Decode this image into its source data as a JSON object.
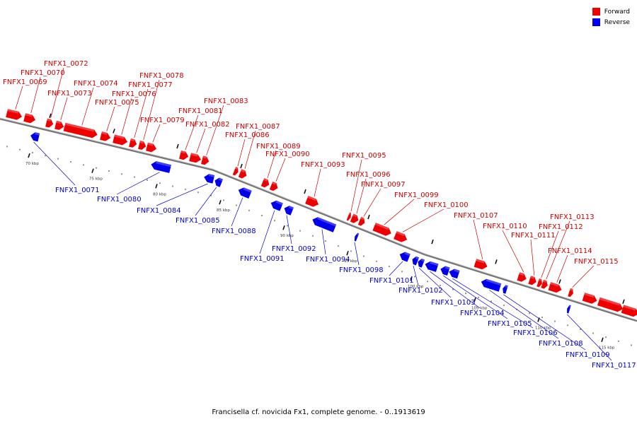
{
  "caption": "Francisella cf. novicida Fx1, complete genome. - 0..1913619",
  "legend": {
    "forward": {
      "label": "Forward",
      "color": "#ee0000"
    },
    "reverse": {
      "label": "Reverse",
      "color": "#0000ee"
    }
  },
  "track": {
    "line_color": "#777777"
  },
  "scale_labels": [
    "70 kbp",
    "75 kbp",
    "80 kbp",
    "85 kbp",
    "90 kbp",
    "95 kbp",
    "100 kbp",
    "105 kbp",
    "110 kbp",
    "115 kbp"
  ],
  "forward_genes": [
    "FNFX1_0069",
    "FNFX1_0070",
    "FNFX1_0072",
    "FNFX1_0073",
    "FNFX1_0074",
    "FNFX1_0075",
    "FNFX1_0076",
    "FNFX1_0077",
    "FNFX1_0078",
    "FNFX1_0079",
    "FNFX1_0081",
    "FNFX1_0082",
    "FNFX1_0083",
    "FNFX1_0086",
    "FNFX1_0087",
    "FNFX1_0089",
    "FNFX1_0090",
    "FNFX1_0093",
    "FNFX1_0095",
    "FNFX1_0096",
    "FNFX1_0097",
    "FNFX1_0099",
    "FNFX1_0100",
    "FNFX1_0107",
    "FNFX1_0110",
    "FNFX1_0111",
    "FNFX1_0112",
    "FNFX1_0113",
    "FNFX1_0114",
    "FNFX1_0115"
  ],
  "reverse_genes": [
    "FNFX1_0071",
    "FNFX1_0080",
    "FNFX1_0084",
    "FNFX1_0085",
    "FNFX1_0088",
    "FNFX1_0091",
    "FNFX1_0092",
    "FNFX1_0094",
    "FNFX1_0098",
    "FNFX1_0101",
    "FNFX1_0102",
    "FNFX1_0103",
    "FNFX1_0104",
    "FNFX1_0105",
    "FNFX1_0106",
    "FNFX1_0108",
    "FNFX1_0109",
    "FNFX1_0117"
  ]
}
